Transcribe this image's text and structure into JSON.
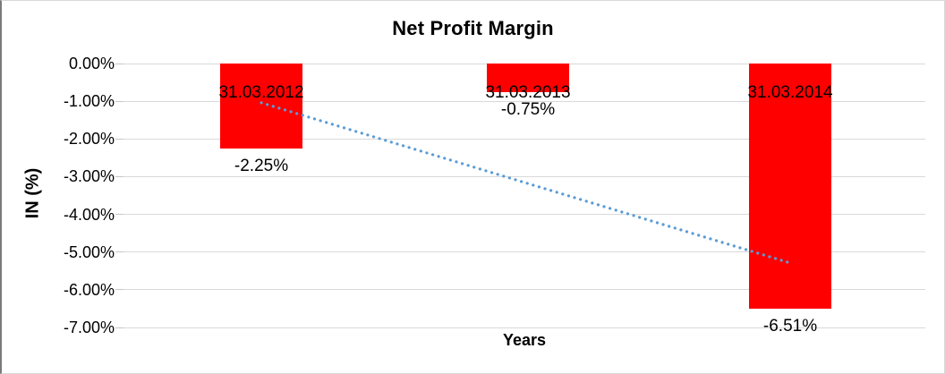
{
  "chart_data": {
    "type": "bar",
    "title": "Net Profit Margin",
    "xlabel": "Years",
    "ylabel": "IN (%)",
    "categories": [
      "31.03.2012",
      "31.03.2013",
      "31.03.2014"
    ],
    "series": [
      {
        "name": "Net Profit Margin",
        "values": [
          -2.25,
          -0.75,
          -6.51
        ]
      }
    ],
    "data_labels": [
      "-2.25%",
      "-0.75%",
      "-6.51%"
    ],
    "y_ticks": [
      "0.00%",
      "-1.00%",
      "-2.00%",
      "-3.00%",
      "-4.00%",
      "-5.00%",
      "-6.00%",
      "-7.00%"
    ],
    "y_tick_values": [
      0,
      -1,
      -2,
      -3,
      -4,
      -5,
      -6,
      -7
    ],
    "ylim": [
      -7,
      0
    ],
    "grid": true,
    "legend": "none",
    "bar_color": "#ff0000",
    "gridline_color": "#d9d9d9",
    "trendline": {
      "type": "linear",
      "style": "dotted",
      "color": "#5B9BD5",
      "start_value": -1.04,
      "end_value": -5.29
    }
  }
}
